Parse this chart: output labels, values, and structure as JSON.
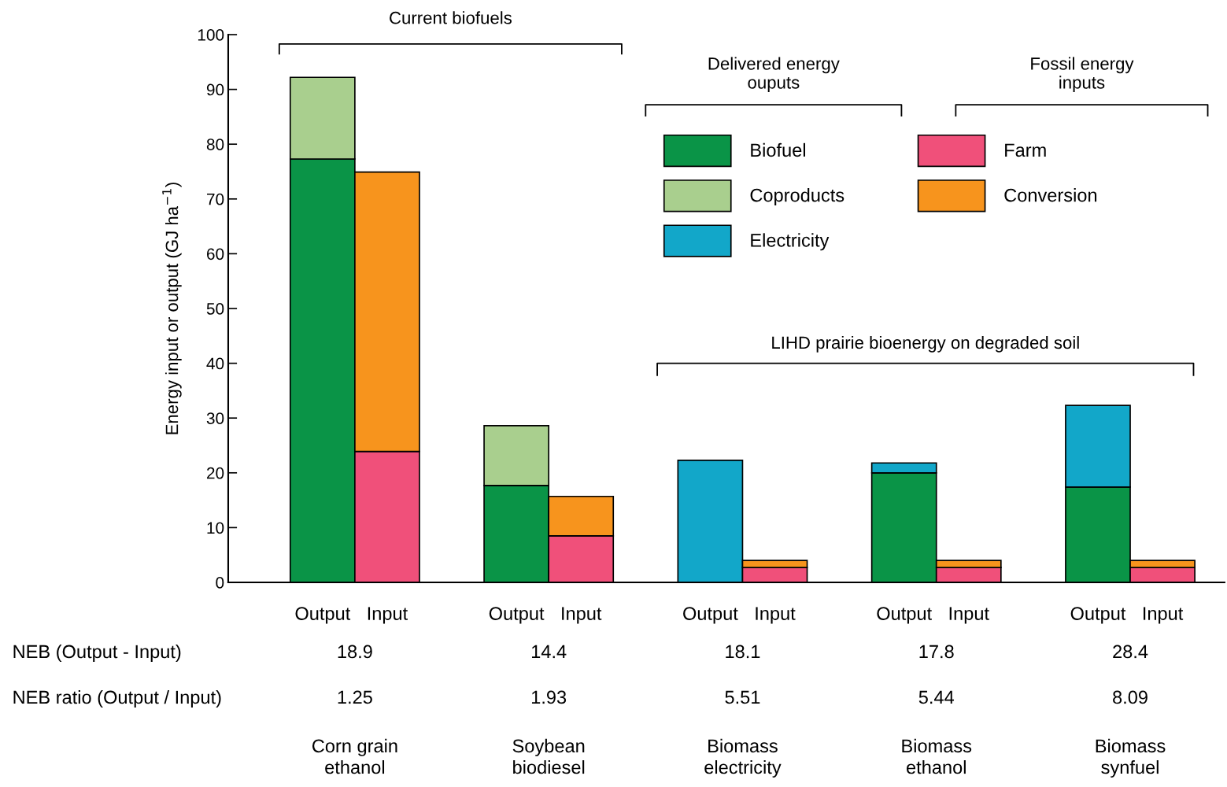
{
  "chart_data": {
    "type": "bar",
    "stacked": true,
    "ylabel": "Energy input or output (GJ ha$^{−1}$)",
    "categories": [
      "Output",
      "Input",
      null,
      "Output",
      "Input",
      null,
      "Output",
      "Input",
      null,
      "Output",
      "Input",
      null,
      "Output",
      "Input"
    ],
    "series": [
      {
        "name": "Biofuel",
        "color": "#0a9447",
        "values": [
          77.3,
          null,
          null,
          17.7,
          null,
          null,
          null,
          null,
          null,
          20.0,
          null,
          null,
          17.4,
          null
        ]
      },
      {
        "name": "Coproducts",
        "color": "#a9cf8e",
        "values": [
          14.9,
          null,
          null,
          10.9,
          null,
          null,
          null,
          null,
          null,
          null,
          null,
          null,
          null,
          null
        ]
      },
      {
        "name": "Electricity",
        "color": "#12a7c9",
        "values": [
          null,
          null,
          null,
          null,
          null,
          null,
          22.3,
          null,
          null,
          1.8,
          null,
          null,
          14.9,
          null
        ]
      },
      {
        "name": "Farm",
        "color": "#f0507a",
        "values": [
          null,
          23.9,
          null,
          null,
          8.5,
          null,
          null,
          2.7,
          null,
          null,
          2.7,
          null,
          null,
          2.7
        ]
      },
      {
        "name": "Conversion",
        "color": "#f7941d",
        "values": [
          null,
          51.0,
          null,
          null,
          7.2,
          null,
          null,
          1.3,
          null,
          null,
          1.3,
          null,
          null,
          1.3
        ]
      }
    ],
    "ylim": [
      0,
      100
    ],
    "yticks": [
      0,
      10,
      20,
      30,
      40,
      50,
      60,
      70,
      80,
      90,
      100
    ],
    "grid": false,
    "legend": "top right",
    "annotations": [
      "Current biofuels",
      "Delivered energy\nouputs",
      "Fossil energy\ninputs",
      "LIHD prairie bioenergy on degraded soil",
      "NEB (Output - Input)",
      "NEB ratio (Output / Input)",
      "18.9",
      "14.4",
      "18.1",
      "17.8",
      "28.4",
      "1.25",
      "1.93",
      "5.51",
      "5.44",
      "8.09",
      "Corn grain\nethanol",
      "Soybean\nbiodiesel",
      "Biomass\nelectricity",
      "Biomass\nethanol",
      "Biomass\nsynfuel"
    ]
  }
}
